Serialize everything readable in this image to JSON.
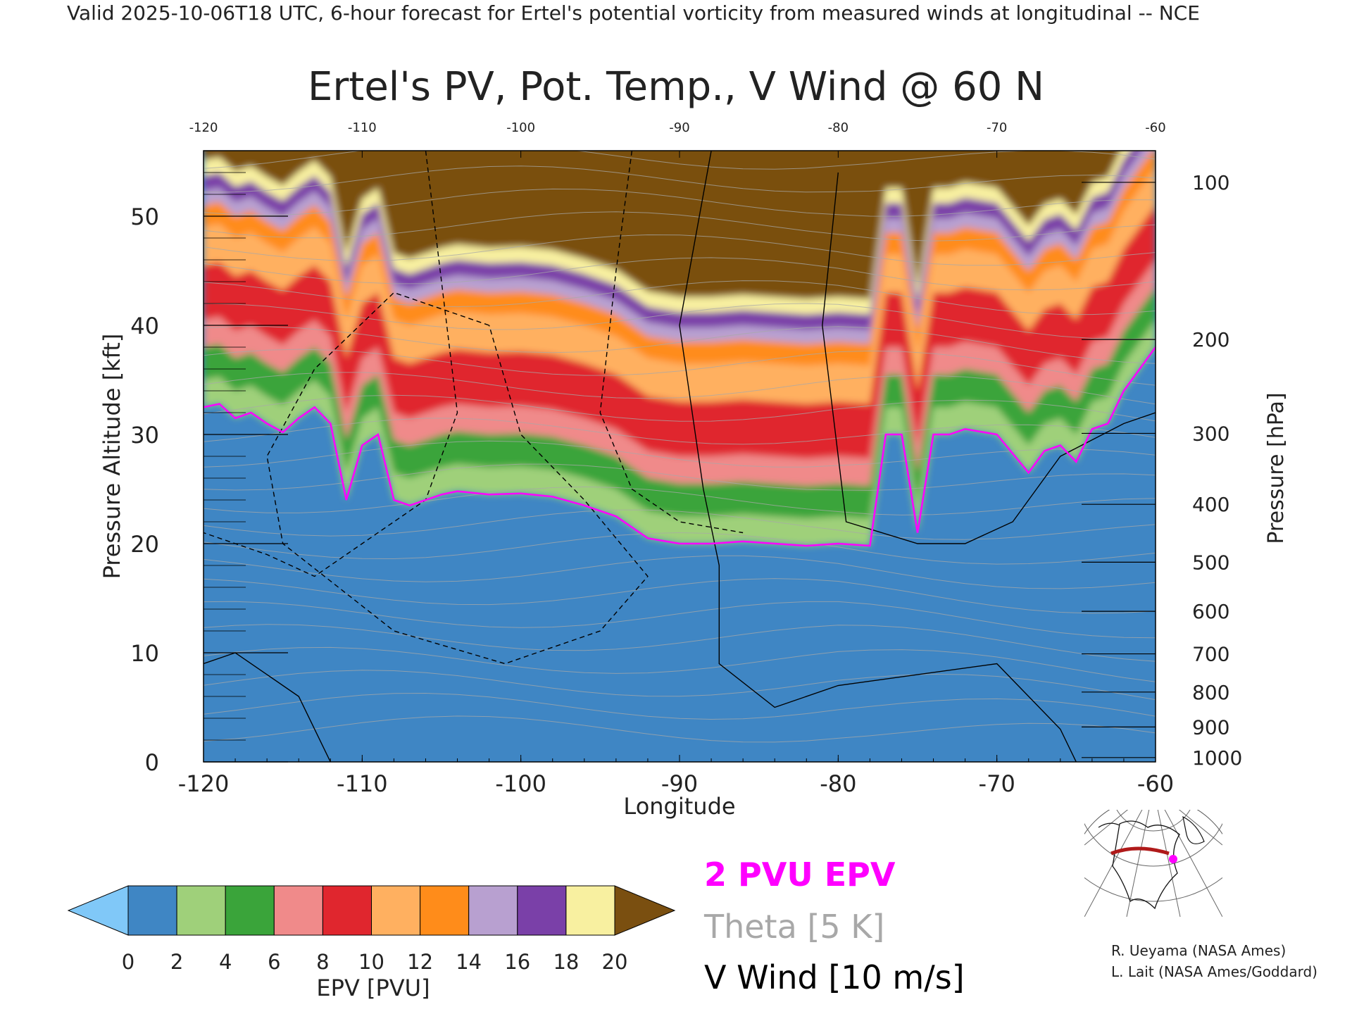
{
  "header": {
    "valid_line": "Valid 2025-10-06T18 UTC, 6-hour forecast for Ertel's potential vorticity from measured winds at longitudinal -- NCE"
  },
  "chart_data": {
    "type": "heatmap",
    "title": "Ertel's PV, Pot. Temp., V Wind @ 60 N",
    "xlabel": "Longitude",
    "ylabel": "Pressure Altitude [kft]",
    "y2label": "Pressure [hPa]",
    "xlim": [
      -120,
      -60
    ],
    "ylim": [
      0,
      56
    ],
    "x_ticks": [
      "-120",
      "-110",
      "-100",
      "-90",
      "-80",
      "-70",
      "-60"
    ],
    "y_ticks": [
      "0",
      "10",
      "20",
      "30",
      "40",
      "50"
    ],
    "pressure_ticks": [
      {
        "label": "100",
        "kft": 53.1
      },
      {
        "label": "200",
        "kft": 38.7
      },
      {
        "label": "300",
        "kft": 30.1
      },
      {
        "label": "400",
        "kft": 23.6
      },
      {
        "label": "500",
        "kft": 18.3
      },
      {
        "label": "600",
        "kft": 13.8
      },
      {
        "label": "700",
        "kft": 9.9
      },
      {
        "label": "800",
        "kft": 6.4
      },
      {
        "label": "900",
        "kft": 3.2
      },
      {
        "label": "1000",
        "kft": 0.4
      }
    ],
    "colorbar": {
      "label": "EPV [PVU]",
      "ticks": [
        "0",
        "2",
        "4",
        "6",
        "8",
        "10",
        "12",
        "14",
        "16",
        "18",
        "20"
      ]
    },
    "legend": {
      "epv_contour": "2 PVU EPV",
      "theta": "Theta [5 K]",
      "vwind": "V Wind [10 m/s]"
    },
    "colors": {
      "epv_contour": "#ff00ff",
      "theta": "#a8a8a8",
      "vwind": "#000000"
    },
    "tropopause_2pvu_kft": [
      [
        -120,
        32.5
      ],
      [
        -119,
        32.8
      ],
      [
        -118,
        31.5
      ],
      [
        -117,
        32.0
      ],
      [
        -116,
        31.0
      ],
      [
        -115,
        30.2
      ],
      [
        -114,
        31.5
      ],
      [
        -113,
        32.5
      ],
      [
        -112,
        31.0
      ],
      [
        -111,
        24.0
      ],
      [
        -110,
        29.0
      ],
      [
        -109,
        30.0
      ],
      [
        -108,
        24.0
      ],
      [
        -107,
        23.5
      ],
      [
        -106,
        24.0
      ],
      [
        -105,
        24.5
      ],
      [
        -104,
        24.8
      ],
      [
        -102,
        24.5
      ],
      [
        -100,
        24.6
      ],
      [
        -98,
        24.3
      ],
      [
        -96,
        23.5
      ],
      [
        -94,
        22.5
      ],
      [
        -92,
        20.5
      ],
      [
        -90,
        20.0
      ],
      [
        -88,
        20.0
      ],
      [
        -86,
        20.2
      ],
      [
        -84,
        20.0
      ],
      [
        -82,
        19.8
      ],
      [
        -80,
        20.0
      ],
      [
        -78,
        19.8
      ],
      [
        -77,
        30.0
      ],
      [
        -76,
        30.0
      ],
      [
        -75,
        21.0
      ],
      [
        -74,
        30.0
      ],
      [
        -73,
        30.0
      ],
      [
        -72,
        30.5
      ],
      [
        -70,
        30.0
      ],
      [
        -68,
        26.5
      ],
      [
        -67,
        28.5
      ],
      [
        -66,
        29.0
      ],
      [
        -65,
        27.5
      ],
      [
        -64,
        30.5
      ],
      [
        -63,
        31.0
      ],
      [
        -62,
        34.0
      ],
      [
        -61,
        36.0
      ],
      [
        -60,
        38.0
      ]
    ],
    "color_bands": [
      {
        "pvu": "0-2",
        "color": "#3f86c4"
      },
      {
        "pvu": "2-4",
        "color": "#9fd07a"
      },
      {
        "pvu": "4-6",
        "color": "#3aa43a"
      },
      {
        "pvu": "6-8",
        "color": "#f08a8a"
      },
      {
        "pvu": "8-10",
        "color": "#e0262e"
      },
      {
        "pvu": "10-12",
        "color": "#ffb060"
      },
      {
        "pvu": "12-14",
        "color": "#ff8c1a"
      },
      {
        "pvu": "14-16",
        "color": "#b8a0d0"
      },
      {
        "pvu": "16-18",
        "color": "#7a40a8"
      },
      {
        "pvu": "18-20",
        "color": "#f8f0a0"
      },
      {
        "pvu": ">20",
        "color": "#7a4f10"
      }
    ]
  },
  "inset_map": {
    "label": "60 N section locator"
  },
  "credits": {
    "line1": "R. Ueyama (NASA Ames)",
    "line2": "L. Lait (NASA Ames/Goddard)"
  }
}
